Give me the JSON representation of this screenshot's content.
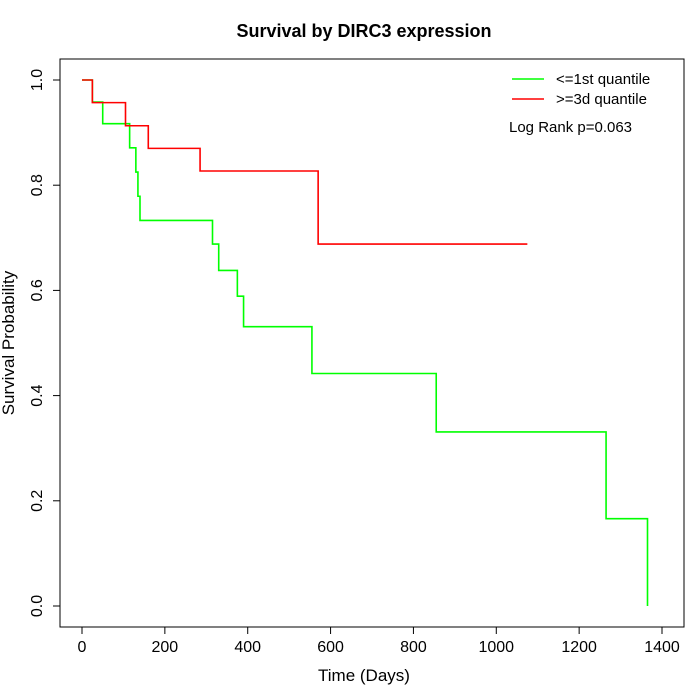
{
  "chart_data": {
    "type": "line",
    "subtype": "kaplan-meier-step",
    "title": "Survival by DIRC3 expression",
    "xlabel": "Time (Days)",
    "ylabel": "Survival Probability",
    "xlim": [
      0,
      1400
    ],
    "ylim": [
      0,
      1.0
    ],
    "x_ticks": [
      0,
      200,
      400,
      600,
      800,
      1000,
      1200,
      1400
    ],
    "y_ticks": [
      0.0,
      0.2,
      0.4,
      0.6,
      0.8,
      1.0
    ],
    "x_tick_labels": [
      "0",
      "200",
      "400",
      "600",
      "800",
      "1000",
      "1200",
      "1400"
    ],
    "y_tick_labels": [
      "0.0",
      "0.2",
      "0.4",
      "0.6",
      "0.8",
      "1.0"
    ],
    "grid": false,
    "legend_position": "top-right",
    "annotation": "Log Rank p=0.063",
    "series": [
      {
        "name": "<=1st quantile",
        "color": "#00ff00",
        "x": [
          0,
          25,
          50,
          115,
          130,
          135,
          140,
          315,
          330,
          375,
          390,
          555,
          855,
          1265,
          1365
        ],
        "y": [
          1.0,
          0.958,
          0.917,
          0.871,
          0.825,
          0.779,
          0.733,
          0.688,
          0.638,
          0.589,
          0.531,
          0.442,
          0.331,
          0.166,
          0.0
        ]
      },
      {
        "name": ">=3d quantile",
        "color": "#ff0000",
        "x": [
          0,
          25,
          105,
          160,
          285,
          570,
          1075
        ],
        "y": [
          1.0,
          0.957,
          0.913,
          0.87,
          0.827,
          0.688,
          0.688
        ]
      }
    ]
  }
}
